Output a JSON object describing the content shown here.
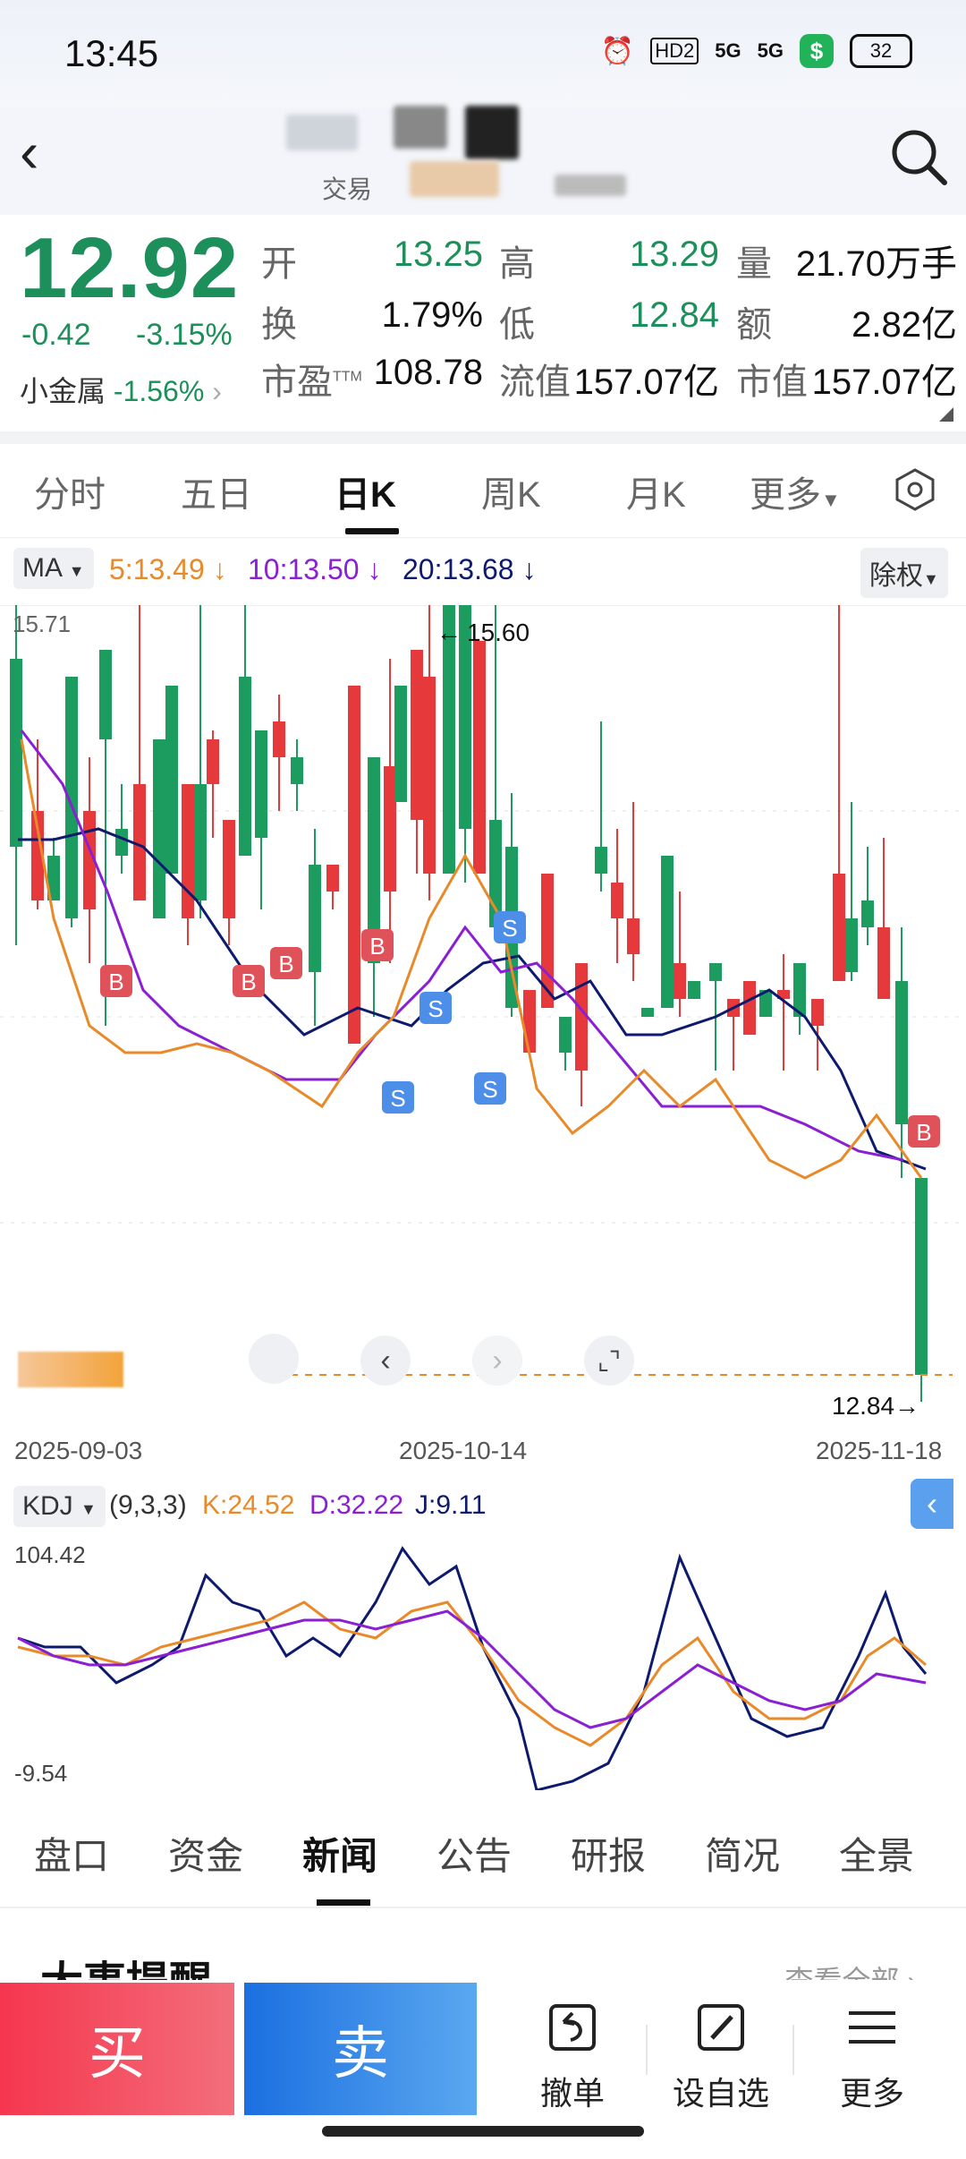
{
  "status": {
    "time": "13:45",
    "hd": "HD2",
    "net1": "5G",
    "net2": "5G",
    "battery": "32"
  },
  "header": {
    "exchange_label": "交易"
  },
  "quote": {
    "price": "12.92",
    "change": "-0.42",
    "change_pct": "-3.15%",
    "sector_name": "小金属",
    "sector_pct": "-1.56%",
    "fields": [
      {
        "label": "开",
        "value": "13.25",
        "color": "green"
      },
      {
        "label": "高",
        "value": "13.29",
        "color": "green"
      },
      {
        "label": "量",
        "value": "21.70万手",
        "color": "black"
      },
      {
        "label": "换",
        "value": "1.79%",
        "color": "black"
      },
      {
        "label": "低",
        "value": "12.84",
        "color": "green"
      },
      {
        "label": "额",
        "value": "2.82亿",
        "color": "black"
      },
      {
        "label": "市盈",
        "value": "108.78",
        "color": "black",
        "sup": "TTM"
      },
      {
        "label": "流值",
        "value": "157.07亿",
        "color": "black"
      },
      {
        "label": "市值",
        "value": "157.07亿",
        "color": "black"
      }
    ]
  },
  "tabs": [
    "分时",
    "五日",
    "日K",
    "周K",
    "月K",
    "更多"
  ],
  "active_tab": "日K",
  "ma": {
    "label": "MA",
    "ma5": "5:13.49",
    "ma10": "10:13.50",
    "ma20": "20:13.68",
    "adjust": "除权"
  },
  "kline_chart": {
    "y_max_label": "15.71",
    "high_marker": "15.60",
    "low_marker": "12.84",
    "dates": [
      "2025-09-03",
      "2025-10-14",
      "2025-11-18"
    ],
    "trade_signals": {
      "b": "B",
      "s": "S"
    }
  },
  "kdj": {
    "label": "KDJ",
    "params": "(9,3,3)",
    "k": "K:24.52",
    "d": "D:32.22",
    "j": "J:9.11",
    "y_max": "104.42",
    "y_min": "-9.54"
  },
  "colors": {
    "up": "#e5393c",
    "down": "#1c9c5e",
    "ma5": "#e88a2a",
    "ma10": "#8a1fd3",
    "ma20": "#0d1a6e"
  },
  "bottom_tabs": [
    "盘口",
    "资金",
    "新闻",
    "公告",
    "研报",
    "简况",
    "全景"
  ],
  "bottom_active": "新闻",
  "news": {
    "title": "大事提醒",
    "more": "查看全部"
  },
  "tradebar": {
    "buy": "买",
    "sell": "卖",
    "cancel": "撤单",
    "watch": "设自选",
    "more": "更多"
  }
}
